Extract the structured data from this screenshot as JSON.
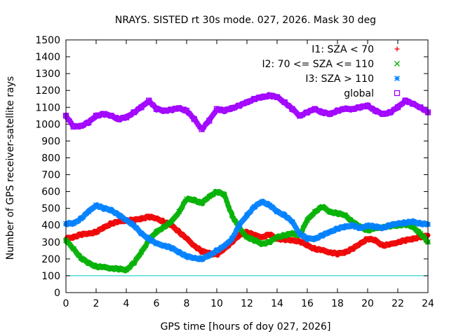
{
  "chart_data": {
    "type": "scatter",
    "title": "NRAYS. SISTED rt 30s mode. 027, 2026. Mask 30 deg",
    "xlabel": "GPS time [hours of doy 027, 2026]",
    "ylabel": "Number of GPS receiver-satellite rays",
    "xlim": [
      0,
      24
    ],
    "ylim": [
      0,
      1500
    ],
    "xticks": [
      "0",
      "2",
      "4",
      "6",
      "8",
      "10",
      "12",
      "14",
      "16",
      "18",
      "20",
      "22",
      "24"
    ],
    "yticks": [
      "0",
      "100",
      "200",
      "300",
      "400",
      "500",
      "600",
      "700",
      "800",
      "900",
      "1000",
      "1100",
      "1200",
      "1300",
      "1400",
      "1500"
    ],
    "legend_position": "top-right",
    "reference_line": {
      "y": 100,
      "color": "#00c8c8"
    },
    "series": [
      {
        "name": "I1: SZA < 70",
        "marker": "plus",
        "color": "#ee0000",
        "x": [
          0,
          0.5,
          1,
          1.5,
          2,
          2.5,
          3,
          3.5,
          4,
          4.5,
          5,
          5.5,
          6,
          6.5,
          7,
          7.5,
          8,
          8.5,
          9,
          9.5,
          10,
          10.5,
          11,
          11.5,
          12,
          12.5,
          13,
          13.5,
          14,
          14.5,
          15,
          15.5,
          16,
          16.5,
          17,
          17.5,
          18,
          18.5,
          19,
          19.5,
          20,
          20.5,
          21,
          21.5,
          22,
          22.5,
          23,
          23.5,
          24
        ],
        "y": [
          320,
          330,
          345,
          350,
          360,
          385,
          410,
          420,
          430,
          430,
          440,
          450,
          440,
          420,
          400,
          360,
          320,
          280,
          245,
          235,
          225,
          260,
          300,
          340,
          360,
          340,
          330,
          345,
          320,
          315,
          310,
          305,
          280,
          260,
          250,
          240,
          230,
          240,
          260,
          290,
          320,
          310,
          280,
          285,
          300,
          310,
          320,
          330,
          340
        ]
      },
      {
        "name": "I2: 70 <= SZA <= 110",
        "marker": "x",
        "color": "#00b000",
        "x": [
          0,
          0.5,
          1,
          1.5,
          2,
          2.5,
          3,
          3.5,
          4,
          4.5,
          5,
          5.5,
          6,
          6.5,
          7,
          7.5,
          8,
          8.5,
          9,
          9.5,
          10,
          10.5,
          11,
          11.5,
          12,
          12.5,
          13,
          13.5,
          14,
          14.5,
          15,
          15.5,
          16,
          16.5,
          17,
          17.5,
          18,
          18.5,
          19,
          19.5,
          20,
          20.5,
          21,
          21.5,
          22,
          22.5,
          23,
          23.5,
          24
        ],
        "y": [
          310,
          260,
          205,
          175,
          155,
          150,
          145,
          140,
          135,
          175,
          240,
          310,
          360,
          390,
          420,
          480,
          555,
          550,
          530,
          570,
          600,
          580,
          460,
          380,
          330,
          310,
          290,
          300,
          330,
          340,
          350,
          340,
          430,
          480,
          510,
          480,
          470,
          460,
          420,
          390,
          370,
          380,
          390,
          395,
          400,
          405,
          390,
          350,
          300
        ]
      },
      {
        "name": "I3: SZA > 110",
        "marker": "star",
        "color": "#0080ff",
        "x": [
          0,
          0.5,
          1,
          1.5,
          2,
          2.5,
          3,
          3.5,
          4,
          4.5,
          5,
          5.5,
          6,
          6.5,
          7,
          7.5,
          8,
          8.5,
          9,
          9.5,
          10,
          10.5,
          11,
          11.5,
          12,
          12.5,
          13,
          13.5,
          14,
          14.5,
          15,
          15.5,
          16,
          16.5,
          17,
          17.5,
          18,
          18.5,
          19,
          19.5,
          20,
          20.5,
          21,
          21.5,
          22,
          22.5,
          23,
          23.5,
          24
        ],
        "y": [
          410,
          410,
          440,
          480,
          520,
          500,
          490,
          460,
          430,
          400,
          350,
          320,
          290,
          280,
          265,
          240,
          215,
          205,
          200,
          220,
          250,
          275,
          320,
          400,
          460,
          510,
          540,
          520,
          480,
          460,
          420,
          350,
          320,
          320,
          340,
          360,
          380,
          390,
          400,
          380,
          400,
          390,
          385,
          400,
          410,
          415,
          420,
          410,
          405
        ]
      },
      {
        "name": "global",
        "marker": "square",
        "color": "#a000ff",
        "x": [
          0,
          0.5,
          1,
          1.5,
          2,
          2.5,
          3,
          3.5,
          4,
          4.5,
          5,
          5.5,
          6,
          6.5,
          7,
          7.5,
          8,
          8.5,
          9,
          9.5,
          10,
          10.5,
          11,
          11.5,
          12,
          12.5,
          13,
          13.5,
          14,
          14.5,
          15,
          15.5,
          16,
          16.5,
          17,
          17.5,
          18,
          18.5,
          19,
          19.5,
          20,
          20.5,
          21,
          21.5,
          22,
          22.5,
          23,
          23.5,
          24
        ],
        "y": [
          1050,
          985,
          990,
          1010,
          1050,
          1060,
          1050,
          1030,
          1040,
          1070,
          1100,
          1140,
          1090,
          1080,
          1085,
          1095,
          1080,
          1030,
          970,
          1020,
          1090,
          1080,
          1095,
          1110,
          1130,
          1150,
          1160,
          1170,
          1160,
          1130,
          1090,
          1050,
          1070,
          1090,
          1070,
          1060,
          1080,
          1090,
          1090,
          1100,
          1110,
          1080,
          1060,
          1070,
          1100,
          1140,
          1120,
          1100,
          1070
        ]
      }
    ]
  }
}
